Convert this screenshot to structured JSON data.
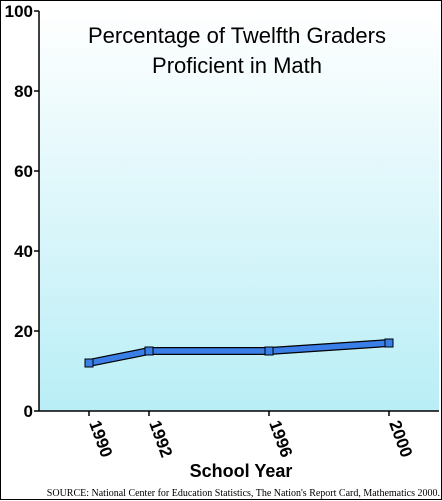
{
  "chart_data": {
    "type": "line",
    "title_lines": [
      "Percentage of Twelfth Graders",
      "Proficient in Math"
    ],
    "xlabel": "School Year",
    "ylabel": "",
    "categories": [
      "1990",
      "1992",
      "1996",
      "2000"
    ],
    "series": [
      {
        "values": [
          12,
          15,
          15,
          17
        ],
        "color": "#3a7ee8"
      }
    ],
    "ylim": [
      0,
      100
    ],
    "yticks": [
      0,
      20,
      40,
      60,
      80,
      100
    ],
    "grid": false,
    "legend": "none",
    "background_gradient": [
      "#ffffff",
      "#b9eef6"
    ],
    "source": "SOURCE: National Center for Education Statistics, The Nation's Report Card, Mathematics 2000."
  }
}
